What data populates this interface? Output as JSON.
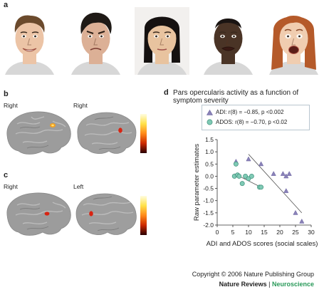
{
  "panels": {
    "a": "a",
    "b": "b",
    "c": "c",
    "d": "d"
  },
  "panel_b": {
    "left_label": "Right",
    "right_label": "Right"
  },
  "panel_c": {
    "left_label": "Right",
    "right_label": "Left"
  },
  "colors": {
    "skin": "#e7bfa0",
    "brain_gray": "#9a9a9a",
    "activation": "#e02010",
    "adi_marker": "#8a82b8",
    "ados_marker": "#7fcab5",
    "fit_line": "#555555"
  },
  "faces": [
    {
      "expression": "happy",
      "skin": "#ecc4a6",
      "hair": "#6b4a2c"
    },
    {
      "expression": "angry",
      "skin": "#dcb096",
      "hair": "#1f1a16"
    },
    {
      "expression": "neutral",
      "skin": "#e8c39f",
      "hair": "#151110"
    },
    {
      "expression": "disgust",
      "skin": "#4a3426",
      "hair": "#1a1412"
    },
    {
      "expression": "fear",
      "skin": "#f0cdb0",
      "hair": "#b55a2a"
    }
  ],
  "chart_data": {
    "type": "scatter",
    "title": "Pars opercularis activity as a function of symptom severity",
    "xlabel": "ADI and ADOS scores (social scales)",
    "ylabel": "Raw parameter estimates",
    "xlim": [
      0,
      30
    ],
    "ylim": [
      -2.0,
      1.5
    ],
    "xticks": [
      "0",
      "5",
      "10",
      "15",
      "20",
      "25",
      "30"
    ],
    "yticks": [
      "1.5",
      "1.0",
      "0.5",
      "0.0",
      "-0.5",
      "-1.0",
      "-1.5",
      "-2.0"
    ],
    "legend_position": "top",
    "series": [
      {
        "name": "ADI",
        "stat": "ADI: r(8) = −0.85, p <0.002",
        "marker": "triangle",
        "x": [
          6,
          10,
          14,
          18,
          21,
          22,
          23,
          22,
          25,
          27
        ],
        "y": [
          0.6,
          0.7,
          0.5,
          0.1,
          0.1,
          0.0,
          0.1,
          -0.6,
          -1.5,
          -1.85
        ],
        "fit": {
          "x": [
            10,
            27
          ],
          "y": [
            0.9,
            -1.5
          ]
        }
      },
      {
        "name": "ADOS",
        "stat": "ADOS: r(8) = −0.70, p <0.02",
        "marker": "circle",
        "x": [
          5.5,
          6,
          6.5,
          7,
          8,
          9,
          10,
          11,
          13.5,
          14
        ],
        "y": [
          0.0,
          0.5,
          0.05,
          0.0,
          -0.3,
          0.0,
          -0.1,
          0.0,
          -0.45,
          -0.45
        ],
        "fit": {
          "x": [
            5.5,
            14
          ],
          "y": [
            0.1,
            -0.45
          ]
        }
      }
    ]
  },
  "footer": {
    "copyright": "Copyright © 2006 Nature Publishing Group",
    "journal": "Nature Reviews",
    "separator": " | ",
    "section": "Neuroscience"
  }
}
